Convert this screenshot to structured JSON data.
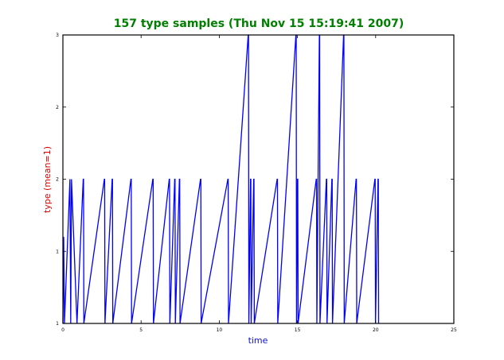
{
  "chart_data": {
    "type": "line",
    "title": "157 type samples (Thu Nov 15 15:19:41 2007)",
    "xlabel": "time",
    "ylabel": "type (mean=1)",
    "xlim": [
      0,
      25
    ],
    "ylim": [
      1,
      3
    ],
    "xticks": [
      "0",
      "5",
      "10",
      "15",
      "20",
      "25"
    ],
    "yticks": [
      "1",
      "1",
      "2",
      "2",
      "3"
    ],
    "ytick_values": [
      1,
      1.5,
      2,
      2.5,
      3
    ],
    "grid": false,
    "colors": {
      "title": "#007f00",
      "axis_labels": "#1111cc",
      "ylabel": "#dd0000",
      "line": "#0000ff"
    },
    "series": [
      {
        "x": [
          0,
          0.05,
          0.1,
          0.45,
          0.5,
          0.55,
          0.9,
          1.3,
          1.32,
          1.34,
          2.65,
          2.67,
          2.69,
          3.15,
          3.17,
          3.19,
          4.35,
          4.37,
          4.39,
          5.75,
          5.77,
          5.79,
          6.8,
          6.82,
          6.84,
          7.15,
          7.17,
          7.19,
          7.45,
          7.47,
          7.49,
          8.8,
          8.82,
          8.84,
          10.55,
          10.57,
          10.59,
          11.85,
          11.87,
          11.89,
          12.0,
          12.02,
          12.04,
          12.2,
          12.22,
          12.24,
          13.7,
          13.72,
          13.74,
          14.9,
          14.92,
          14.94,
          15.0,
          15.02,
          15.04,
          16.2,
          16.22,
          16.24,
          16.4,
          16.42,
          16.44,
          16.85,
          16.87,
          16.89,
          17.2,
          17.22,
          17.24,
          17.95,
          17.97,
          17.99,
          18.75,
          18.77,
          18.79,
          19.95,
          19.97,
          19.99,
          20.15,
          20.17,
          20.19
        ],
        "y": [
          1,
          1.6,
          1,
          2,
          1,
          2,
          1,
          2,
          2,
          1,
          2,
          2,
          1,
          2,
          2,
          1,
          2,
          2,
          1,
          2,
          2,
          1,
          2,
          2,
          1,
          2,
          2,
          1,
          2,
          2,
          1,
          2,
          2,
          1,
          2,
          2,
          1,
          3,
          3,
          1,
          2,
          2,
          1,
          2,
          2,
          1,
          2,
          2,
          1,
          3,
          3,
          1,
          2,
          2,
          1,
          2,
          2,
          1,
          3,
          3,
          1,
          2,
          2,
          1,
          2,
          2,
          1,
          3,
          3,
          1,
          2,
          2,
          1,
          2,
          2,
          1,
          2,
          2,
          1
        ]
      }
    ]
  }
}
